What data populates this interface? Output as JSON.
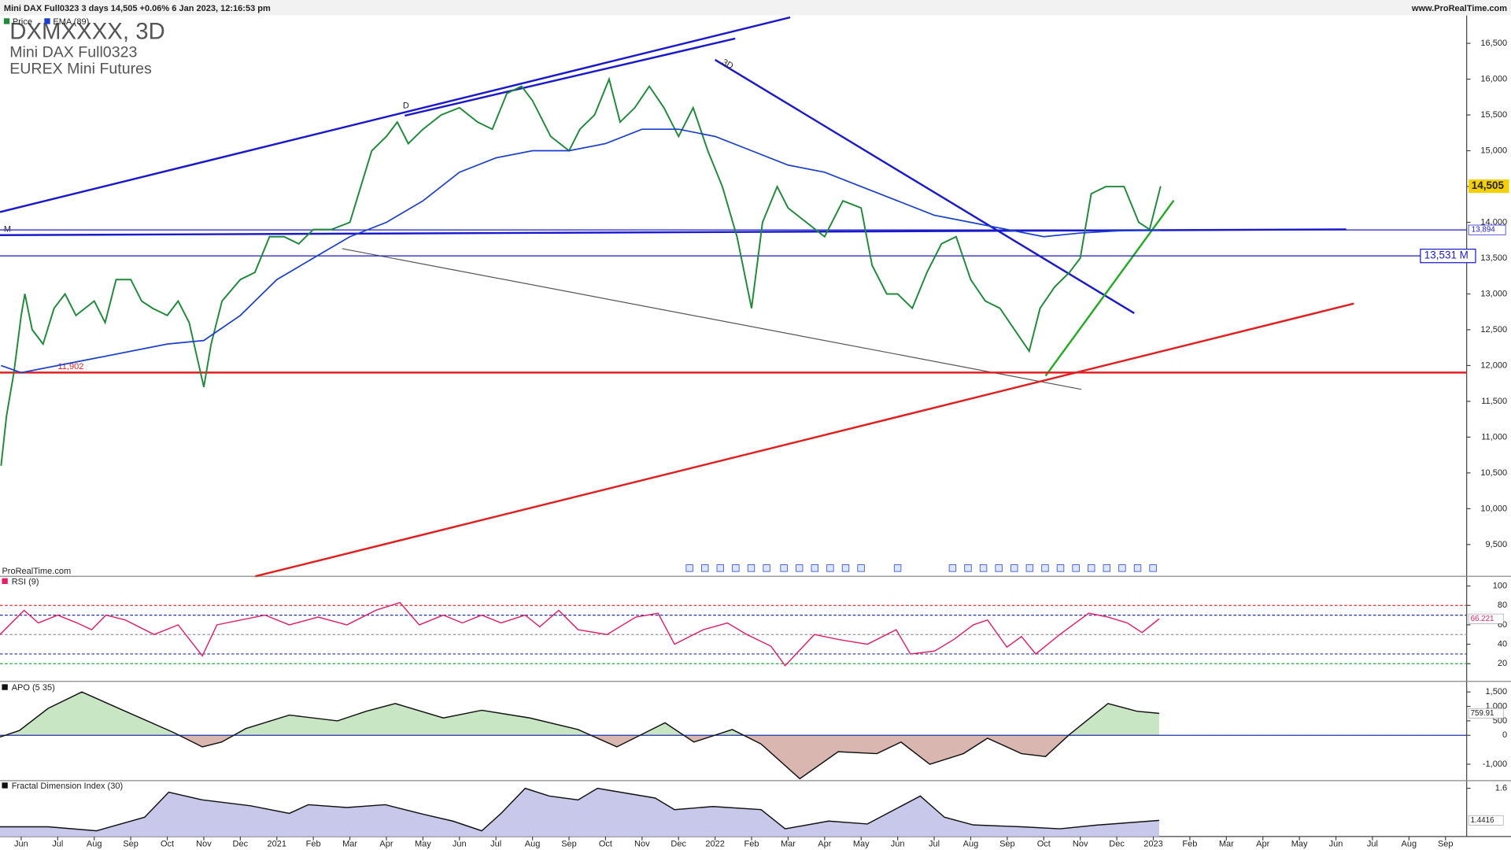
{
  "header": {
    "info": "Mini DAX Full0323 3 days 14,505 +0.06% 6 Jan 2023, 12:16:53 pm",
    "site": "www.ProRealTime.com",
    "watermark": "ProRealTime.com"
  },
  "annotations": [
    "D",
    "3D",
    "M"
  ],
  "chart_data": [
    {
      "type": "line",
      "title": "DXMXXXX, 3D",
      "subtitle": [
        "Mini DAX Full0323",
        "EUREX Mini Futures"
      ],
      "xlim": [
        -0.58,
        39.58
      ],
      "ylim": [
        9056,
        16890
      ],
      "xticks": [
        {
          "value": 0,
          "label": "Jun"
        },
        {
          "value": 1,
          "label": "Jul"
        },
        {
          "value": 2,
          "label": "Aug"
        },
        {
          "value": 3,
          "label": "Sep"
        },
        {
          "value": 4,
          "label": "Oct"
        },
        {
          "value": 5,
          "label": "Nov"
        },
        {
          "value": 6,
          "label": "Dec"
        },
        {
          "value": 7,
          "label": "2021"
        },
        {
          "value": 8,
          "label": "Feb"
        },
        {
          "value": 9,
          "label": "Mar"
        },
        {
          "value": 10,
          "label": "Apr"
        },
        {
          "value": 11,
          "label": "May"
        },
        {
          "value": 12,
          "label": "Jun"
        },
        {
          "value": 13,
          "label": "Jul"
        },
        {
          "value": 14,
          "label": "Aug"
        },
        {
          "value": 15,
          "label": "Sep"
        },
        {
          "value": 16,
          "label": "Oct"
        },
        {
          "value": 17,
          "label": "Nov"
        },
        {
          "value": 18,
          "label": "Dec"
        },
        {
          "value": 19,
          "label": "2022"
        },
        {
          "value": 20,
          "label": "Feb"
        },
        {
          "value": 21,
          "label": "Mar"
        },
        {
          "value": 22,
          "label": "Apr"
        },
        {
          "value": 23,
          "label": "May"
        },
        {
          "value": 24,
          "label": "Jun"
        },
        {
          "value": 25,
          "label": "Jul"
        },
        {
          "value": 26,
          "label": "Aug"
        },
        {
          "value": 27,
          "label": "Sep"
        },
        {
          "value": 28,
          "label": "Oct"
        },
        {
          "value": 29,
          "label": "Nov"
        },
        {
          "value": 30,
          "label": "Dec"
        },
        {
          "value": 31,
          "label": "2023"
        },
        {
          "value": 32,
          "label": "Feb"
        },
        {
          "value": 33,
          "label": "Mar"
        },
        {
          "value": 34,
          "label": "Apr"
        },
        {
          "value": 35,
          "label": "May"
        },
        {
          "value": 36,
          "label": "Jun"
        },
        {
          "value": 37,
          "label": "Jul"
        },
        {
          "value": 38,
          "label": "Aug"
        },
        {
          "value": 39,
          "label": "Sep"
        }
      ],
      "yticks": [
        {
          "value": 9500,
          "label": "9,500"
        },
        {
          "value": 10000,
          "label": "10,000"
        },
        {
          "value": 10500,
          "label": "10,500"
        },
        {
          "value": 11000,
          "label": "11,000"
        },
        {
          "value": 11500,
          "label": "11,500"
        },
        {
          "value": 12000,
          "label": "12,000"
        },
        {
          "value": 12500,
          "label": "12,500"
        },
        {
          "value": 13000,
          "label": "13,000"
        },
        {
          "value": 13500,
          "label": "13,500"
        },
        {
          "value": 14000,
          "label": "14,000"
        },
        {
          "value": 14500,
          "label": "14,500"
        },
        {
          "value": 15000,
          "label": "15,000"
        },
        {
          "value": 15500,
          "label": "15,500"
        },
        {
          "value": 16000,
          "label": "16,000"
        },
        {
          "value": 16500,
          "label": "16,500"
        }
      ],
      "series": [
        {
          "name": "Price",
          "color": "#1f8a3a",
          "x": [
            -0.55,
            -0.4,
            -0.2,
            0,
            0.1,
            0.3,
            0.6,
            0.9,
            1.2,
            1.5,
            2.0,
            2.3,
            2.6,
            3.0,
            3.3,
            3.6,
            4.0,
            4.3,
            4.6,
            5.0,
            5.2,
            5.5,
            6.0,
            6.4,
            6.8,
            7.2,
            7.6,
            8.0,
            8.5,
            9.0,
            9.3,
            9.6,
            10.0,
            10.3,
            10.6,
            11.0,
            11.5,
            12.0,
            12.5,
            12.9,
            13.3,
            13.7,
            14.0,
            14.5,
            15.0,
            15.3,
            15.7,
            16.1,
            16.4,
            16.8,
            17.2,
            17.6,
            18.0,
            18.4,
            18.8,
            19.2,
            19.6,
            20.0,
            20.3,
            20.7,
            21.0,
            21.5,
            22.0,
            22.5,
            23.0,
            23.3,
            23.7,
            24.0,
            24.4,
            24.8,
            25.2,
            25.6,
            26.0,
            26.4,
            26.8,
            27.2,
            27.6,
            27.9,
            28.3,
            28.7,
            29.0,
            29.3,
            29.7,
            30.2,
            30.6,
            30.9,
            31.2
          ],
          "values": [
            10600,
            11300,
            11900,
            12700,
            13000,
            12500,
            12300,
            12800,
            13000,
            12700,
            12900,
            12600,
            13200,
            13200,
            12900,
            12800,
            12700,
            12900,
            12600,
            11700,
            12300,
            12900,
            13200,
            13300,
            13800,
            13800,
            13700,
            13900,
            13900,
            14000,
            14500,
            15000,
            15200,
            15400,
            15100,
            15300,
            15500,
            15600,
            15400,
            15300,
            15800,
            15900,
            15700,
            15200,
            15000,
            15300,
            15500,
            16000,
            15400,
            15600,
            15900,
            15600,
            15200,
            15600,
            15000,
            14500,
            13800,
            12800,
            14000,
            14500,
            14200,
            14000,
            13800,
            14300,
            14200,
            13400,
            13000,
            13000,
            12800,
            13300,
            13700,
            13800,
            13200,
            12900,
            12800,
            12500,
            12200,
            12800,
            13100,
            13300,
            13500,
            14400,
            14500,
            14500,
            14000,
            13900,
            14505
          ]
        },
        {
          "name": "EMA (89)",
          "color": "#1a3fcc",
          "x": [
            -0.55,
            0,
            2,
            4,
            5,
            6,
            7,
            8,
            9,
            10,
            11,
            12,
            13,
            14,
            15,
            16,
            17,
            18,
            19,
            20,
            21,
            22,
            23,
            24,
            25,
            26,
            27,
            28,
            29,
            30,
            31.2
          ],
          "values": [
            12000,
            11900,
            12100,
            12300,
            12350,
            12700,
            13200,
            13500,
            13800,
            14000,
            14300,
            14700,
            14900,
            15000,
            15000,
            15100,
            15300,
            15300,
            15200,
            15000,
            14800,
            14700,
            14500,
            14300,
            14100,
            14000,
            13900,
            13800,
            13850,
            13880,
            13894
          ]
        }
      ],
      "levels": [
        {
          "value": 13894,
          "label": "13,894",
          "color": "#1a1acc"
        },
        {
          "value": 13531,
          "label": "13,531 M",
          "color": "#1a1acc"
        },
        {
          "value": 11902,
          "label": "11,902",
          "color": "#e02020"
        }
      ],
      "last": {
        "value": 14505,
        "label": "14,505"
      }
    },
    {
      "type": "line",
      "title": "RSI (9)",
      "color": "#e0206a",
      "ylim": [
        1.8,
        110
      ],
      "yticks": [
        20,
        40,
        60,
        80,
        100
      ],
      "levels": [
        {
          "value": 80,
          "color": "#dd3333"
        },
        {
          "value": 70,
          "color": "#2233aa"
        },
        {
          "value": 50,
          "color": "#999999"
        },
        {
          "value": 30,
          "color": "#2233aa"
        },
        {
          "value": 20,
          "color": "#22aa44"
        }
      ],
      "x": [
        -0.58,
        0.08,
        0.47,
        1.0,
        1.53,
        1.93,
        2.32,
        2.85,
        3.64,
        4.3,
        4.96,
        5.36,
        6.02,
        6.68,
        7.34,
        8.13,
        8.92,
        9.71,
        10.37,
        10.9,
        11.56,
        12.08,
        12.61,
        13.14,
        13.8,
        14.2,
        14.72,
        15.25,
        16.04,
        16.83,
        17.44,
        17.89,
        18.68,
        19.34,
        19.87,
        20.53,
        20.92,
        21.72,
        22.37,
        23.17,
        23.96,
        24.35,
        25.01,
        25.54,
        26.07,
        26.46,
        26.99,
        27.39,
        27.78,
        28.44,
        29.23,
        29.76,
        30.29,
        30.69,
        31.16
      ],
      "values": [
        50,
        75,
        62,
        70,
        62,
        55,
        70,
        65,
        50,
        60,
        28,
        60,
        65,
        70,
        60,
        68,
        60,
        75,
        83,
        60,
        70,
        62,
        70,
        62,
        70,
        58,
        75,
        55,
        50,
        68,
        72,
        40,
        55,
        62,
        50,
        38,
        18,
        50,
        45,
        40,
        55,
        30,
        33,
        45,
        60,
        65,
        37,
        48,
        30,
        50,
        72,
        68,
        62,
        52,
        66.221
      ],
      "last": 66.221
    },
    {
      "type": "area",
      "title": "APO (5 35)",
      "ylim": [
        -1567,
        1833
      ],
      "yticks": [
        {
          "value": 1500,
          "label": "1,500"
        },
        {
          "value": 1000,
          "label": "1,000"
        },
        500,
        0,
        {
          "value": -1000,
          "label": "-1,000"
        }
      ],
      "x": [
        -0.58,
        -0.05,
        0.74,
        1.66,
        2.85,
        4.17,
        4.96,
        5.49,
        6.15,
        7.34,
        8.66,
        9.45,
        10.24,
        11.56,
        12.61,
        13.93,
        15.25,
        16.31,
        17.63,
        18.42,
        19.47,
        20.26,
        21.32,
        22.37,
        23.43,
        24.09,
        24.88,
        25.8,
        26.46,
        27.39,
        28.05,
        28.71,
        29.76,
        30.55,
        31.16
      ],
      "values": [
        -60,
        167,
        933,
        1500,
        833,
        100,
        -400,
        -233,
        233,
        700,
        500,
        833,
        1100,
        600,
        867,
        600,
        200,
        -400,
        433,
        -233,
        200,
        -300,
        -1500,
        -567,
        -633,
        -233,
        -1000,
        -633,
        -100,
        -633,
        -733,
        33,
        1100,
        833,
        759.91
      ],
      "last": 759.91
    },
    {
      "type": "area",
      "title": "Fractal Dimension Index (30)",
      "ylim": [
        1.362,
        1.638
      ],
      "yticks": [
        1.6
      ],
      "x": [
        -0.58,
        0.74,
        2.06,
        3.38,
        4.04,
        4.96,
        6.28,
        7.34,
        7.86,
        8.92,
        9.97,
        11.03,
        11.82,
        12.61,
        13.14,
        13.8,
        14.46,
        15.25,
        15.78,
        17.36,
        17.89,
        18.94,
        20.26,
        20.92,
        22.11,
        23.17,
        24.62,
        25.28,
        26.07,
        27.39,
        28.44,
        29.5,
        31.16
      ],
      "values": [
        1.41,
        1.41,
        1.39,
        1.457,
        1.581,
        1.543,
        1.514,
        1.476,
        1.519,
        1.505,
        1.519,
        1.471,
        1.438,
        1.39,
        1.476,
        1.6,
        1.562,
        1.543,
        1.6,
        1.552,
        1.495,
        1.51,
        1.495,
        1.4,
        1.438,
        1.424,
        1.562,
        1.457,
        1.419,
        1.41,
        1.4,
        1.419,
        1.4416
      ],
      "last": 1.4416
    }
  ]
}
